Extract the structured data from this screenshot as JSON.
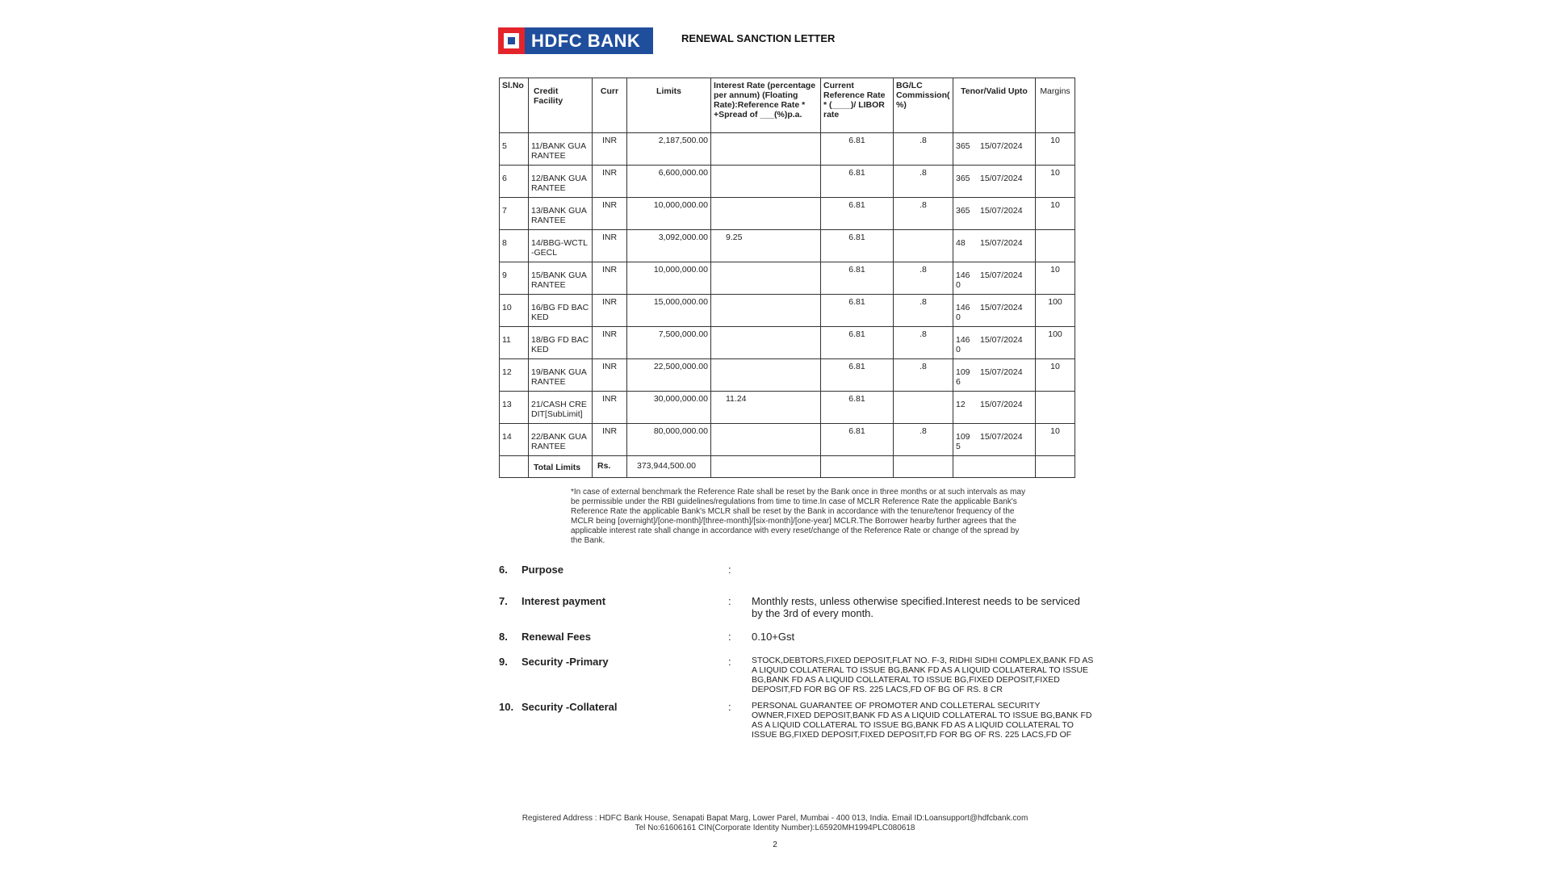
{
  "header": {
    "logo_text": "HDFC BANK",
    "title": "RENEWAL SANCTION LETTER",
    "logo_colors": {
      "blue": "#1f4e9c",
      "red": "#e4242b"
    }
  },
  "table": {
    "headers": [
      "Sl.No",
      "Credit Facility",
      "Curr",
      "Limits",
      "Interest Rate (percentage per annum) (Floating Rate):Reference Rate * +Spread of ___(%)p.a.",
      "Current Reference Rate * (____)/ LIBOR rate",
      "BG/LC Commission( %)",
      "Tenor/Valid Upto",
      "Margins"
    ],
    "rows": [
      {
        "sl": "5",
        "facility": "11/BANK GUARANTEE",
        "curr": "INR",
        "limit": "2,187,500.00",
        "interest": "",
        "ref": "6.81",
        "comm": ".8",
        "tenor": "365",
        "valid": "15/07/2024",
        "margin": "10"
      },
      {
        "sl": "6",
        "facility": "12/BANK GUARANTEE",
        "curr": "INR",
        "limit": "6,600,000.00",
        "interest": "",
        "ref": "6.81",
        "comm": ".8",
        "tenor": "365",
        "valid": "15/07/2024",
        "margin": "10"
      },
      {
        "sl": "7",
        "facility": "13/BANK GUARANTEE",
        "curr": "INR",
        "limit": "10,000,000.00",
        "interest": "",
        "ref": "6.81",
        "comm": ".8",
        "tenor": "365",
        "valid": "15/07/2024",
        "margin": "10"
      },
      {
        "sl": "8",
        "facility": "14/BBG-WCTL-GECL",
        "curr": "INR",
        "limit": "3,092,000.00",
        "interest": "9.25",
        "ref": "6.81",
        "comm": "",
        "tenor": "48",
        "valid": "15/07/2024",
        "margin": ""
      },
      {
        "sl": "9",
        "facility": "15/BANK GUARANTEE",
        "curr": "INR",
        "limit": "10,000,000.00",
        "interest": "",
        "ref": "6.81",
        "comm": ".8",
        "tenor": "1460",
        "valid": "15/07/2024",
        "margin": "10"
      },
      {
        "sl": "10",
        "facility": "16/BG FD BACKED",
        "curr": "INR",
        "limit": "15,000,000.00",
        "interest": "",
        "ref": "6.81",
        "comm": ".8",
        "tenor": "1460",
        "valid": "15/07/2024",
        "margin": "100"
      },
      {
        "sl": "11",
        "facility": "18/BG FD BACKED",
        "curr": "INR",
        "limit": "7,500,000.00",
        "interest": "",
        "ref": "6.81",
        "comm": ".8",
        "tenor": "1460",
        "valid": "15/07/2024",
        "margin": "100"
      },
      {
        "sl": "12",
        "facility": "19/BANK GUARANTEE",
        "curr": "INR",
        "limit": "22,500,000.00",
        "interest": "",
        "ref": "6.81",
        "comm": ".8",
        "tenor": "1096",
        "valid": "15/07/2024",
        "margin": "10"
      },
      {
        "sl": "13",
        "facility": "21/CASH CREDIT[SubLimit]",
        "curr": "INR",
        "limit": "30,000,000.00",
        "interest": "11.24",
        "ref": "6.81",
        "comm": "",
        "tenor": "12",
        "valid": "15/07/2024",
        "margin": ""
      },
      {
        "sl": "14",
        "facility": "22/BANK GUARANTEE",
        "curr": "INR",
        "limit": "80,000,000.00",
        "interest": "",
        "ref": "6.81",
        "comm": ".8",
        "tenor": "1095",
        "valid": "15/07/2024",
        "margin": "10"
      }
    ],
    "total": {
      "label": "Total Limits",
      "curr": "Rs.",
      "value": "373,944,500.00"
    }
  },
  "footnote": "*In case of external benchmark the Reference Rate shall be reset by the Bank once in three months or at such intervals as may be permissible under the RBI guidelines/regulations from time to time.In case of MCLR Reference Rate the applicable Bank's Reference Rate the applicable Bank's MCLR shall be reset by the Bank in accordance with the tenure/tenor frequency of the MCLR being [overnight]/[one-month]/[three-month]/[six-month]/[one-year] MCLR.The Borrower hearby further agrees that the applicable interest rate shall change in accordance  with every reset/change of the Reference Rate or change of the spread by the Bank.",
  "sections": [
    {
      "num": "6.",
      "label": "Purpose",
      "colon": ":",
      "value": ""
    },
    {
      "num": "7.",
      "label": "Interest payment",
      "colon": ":",
      "value": "Monthly rests, unless otherwise specified.Interest needs to be serviced by the 3rd of  every month."
    },
    {
      "num": "8.",
      "label": "Renewal  Fees",
      "colon": ":",
      "value": "0.10+Gst"
    },
    {
      "num": "9.",
      "label": "Security -Primary",
      "colon": ":",
      "value": "STOCK,DEBTORS,FIXED DEPOSIT,FLAT NO. F-3, RIDHI SIDHI COMPLEX,BANK FD AS A LIQUID COLLATERAL TO ISSUE BG,BANK FD AS A LIQUID COLLATERAL TO ISSUE BG,BANK FD AS A LIQUID COLLATERAL TO ISSUE BG,FIXED DEPOSIT,FIXED DEPOSIT,FD FOR BG OF RS. 225 LACS,FD OF BG OF RS. 8 CR"
    },
    {
      "num": "10.",
      "label": "Security -Collateral",
      "colon": ":",
      "value": "PERSONAL GUARANTEE OF PROMOTER AND COLLETERAL SECURITY OWNER,FIXED DEPOSIT,BANK FD AS A LIQUID COLLATERAL TO ISSUE BG,BANK FD AS A LIQUID COLLATERAL TO ISSUE BG,BANK FD AS A LIQUID COLLATERAL TO ISSUE BG,FIXED DEPOSIT,FIXED DEPOSIT,FD FOR BG OF RS. 225 LACS,FD OF"
    }
  ],
  "footer": {
    "address": "Registered Address : HDFC Bank House, Senapati Bapat Marg, Lower Parel, Mumbai - 400 013, India. Email ID:Loansupport@hdfcbank.com",
    "tel": "Tel No:61606161 CIN(Corporate Identity Number):L65920MH1994PLC080618",
    "page": "2"
  }
}
